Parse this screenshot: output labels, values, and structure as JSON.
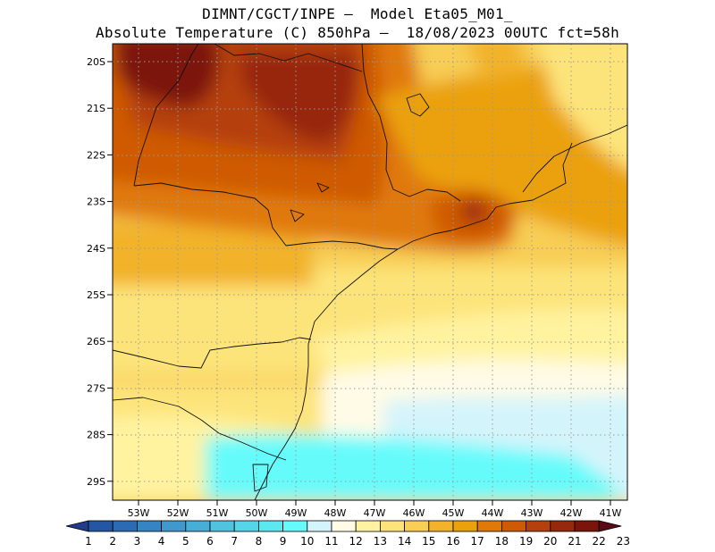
{
  "title": {
    "line1": "DIMNT/CGCT/INPE —  Model Eta05_M01_",
    "line2": "Absolute Temperature (C) 850hPa —  18/08/2023 00UTC fct=58h"
  },
  "map": {
    "lat_labels": [
      "20S",
      "21S",
      "22S",
      "23S",
      "24S",
      "25S",
      "26S",
      "27S",
      "28S",
      "29S"
    ],
    "lon_labels": [
      "53W",
      "52W",
      "51W",
      "50W",
      "49W",
      "48W",
      "47W",
      "46W",
      "45W",
      "44W",
      "43W",
      "42W",
      "41W"
    ]
  },
  "colorbar": {
    "labels": [
      "1",
      "2",
      "3",
      "4",
      "5",
      "6",
      "7",
      "8",
      "9",
      "10",
      "11",
      "12",
      "13",
      "14",
      "15",
      "16",
      "17",
      "18",
      "19",
      "20",
      "21",
      "22",
      "23"
    ],
    "colors": [
      "#1f3d8c",
      "#2456a4",
      "#2b6bb6",
      "#3584c4",
      "#3f99cd",
      "#47aed6",
      "#4fc3df",
      "#55d6e8",
      "#5ce8ef",
      "#66fbfb",
      "#d4f4fb",
      "#fffbe6",
      "#fff3a0",
      "#fde47a",
      "#f8ce55",
      "#f2b22b",
      "#eba10c",
      "#e07908",
      "#cf5a06",
      "#b5400b",
      "#97280b",
      "#7b150c",
      "#5b0a16"
    ]
  }
}
